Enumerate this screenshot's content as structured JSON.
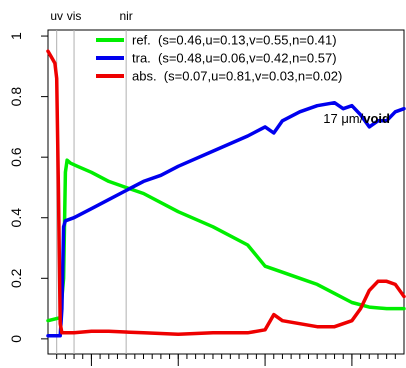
{
  "chart_data": {
    "type": "line",
    "title": "",
    "xlabel": "",
    "ylabel": "",
    "xlim": [
      0.25,
      2.3
    ],
    "ylim": [
      -0.05,
      1.02
    ],
    "yticks": [
      0,
      0.2,
      0.4,
      0.6,
      0.8,
      1
    ],
    "ytick_labels": [
      "0",
      "0.2",
      "0.4",
      "0.6",
      "0.8",
      "1"
    ],
    "xticks_minor": [
      0.3,
      0.35,
      0.4,
      0.45,
      0.5,
      0.55,
      0.6,
      0.65,
      0.7,
      0.75,
      0.8,
      0.85,
      0.9,
      0.95,
      1.0,
      1.05,
      1.1,
      1.15,
      1.2,
      1.25,
      1.3,
      1.35,
      1.4,
      1.45,
      1.5,
      1.55,
      1.6,
      1.65,
      1.7,
      1.75,
      1.8,
      1.85,
      1.9,
      1.95,
      2.0,
      2.05,
      2.1,
      2.15,
      2.2,
      2.25
    ],
    "xticks_major": [
      0.5,
      1.0,
      1.5,
      2.0
    ],
    "region_lines": [
      {
        "x": 0.3,
        "label": "uv"
      },
      {
        "x": 0.4,
        "label": "vis"
      },
      {
        "x": 0.7,
        "label": "nir"
      }
    ],
    "annotation": {
      "prefix": "17 μm/",
      "bold": "void"
    },
    "legend_position": "top-right",
    "series": [
      {
        "name": "ref.  (s=0.46,u=0.13,v=0.55,n=0.41)",
        "color": "#00ee00",
        "x": [
          0.25,
          0.32,
          0.34,
          0.35,
          0.36,
          0.38,
          0.42,
          0.5,
          0.6,
          0.7,
          0.8,
          1.0,
          1.2,
          1.4,
          1.5,
          1.6,
          1.7,
          1.8,
          1.9,
          2.0,
          2.1,
          2.2,
          2.3
        ],
        "y": [
          0.06,
          0.07,
          0.2,
          0.55,
          0.59,
          0.58,
          0.57,
          0.55,
          0.52,
          0.5,
          0.48,
          0.42,
          0.37,
          0.31,
          0.24,
          0.22,
          0.2,
          0.18,
          0.15,
          0.12,
          0.105,
          0.1,
          0.1
        ]
      },
      {
        "name": "tra.  (s=0.48,u=0.06,v=0.42,n=0.57)",
        "color": "#0000ee",
        "x": [
          0.25,
          0.32,
          0.33,
          0.34,
          0.35,
          0.4,
          0.5,
          0.6,
          0.7,
          0.8,
          0.9,
          1.0,
          1.2,
          1.4,
          1.5,
          1.55,
          1.6,
          1.7,
          1.8,
          1.9,
          1.95,
          2.0,
          2.05,
          2.1,
          2.15,
          2.2,
          2.25,
          2.3
        ],
        "y": [
          0.01,
          0.01,
          0.1,
          0.37,
          0.39,
          0.4,
          0.43,
          0.46,
          0.49,
          0.52,
          0.54,
          0.57,
          0.62,
          0.67,
          0.7,
          0.68,
          0.72,
          0.75,
          0.77,
          0.78,
          0.76,
          0.77,
          0.74,
          0.7,
          0.72,
          0.72,
          0.75,
          0.76
        ]
      },
      {
        "name": "abs.  (s=0.07,u=0.81,v=0.03,n=0.02)",
        "color": "#ee0000",
        "x": [
          0.25,
          0.27,
          0.29,
          0.3,
          0.31,
          0.32,
          0.33,
          0.34,
          0.4,
          0.5,
          0.6,
          0.8,
          1.0,
          1.2,
          1.4,
          1.5,
          1.55,
          1.6,
          1.7,
          1.8,
          1.9,
          2.0,
          2.05,
          2.1,
          2.15,
          2.2,
          2.25,
          2.3
        ],
        "y": [
          0.95,
          0.93,
          0.91,
          0.86,
          0.5,
          0.05,
          0.02,
          0.02,
          0.02,
          0.025,
          0.025,
          0.02,
          0.015,
          0.02,
          0.02,
          0.03,
          0.08,
          0.06,
          0.05,
          0.04,
          0.04,
          0.06,
          0.1,
          0.16,
          0.19,
          0.19,
          0.18,
          0.14
        ]
      }
    ]
  }
}
